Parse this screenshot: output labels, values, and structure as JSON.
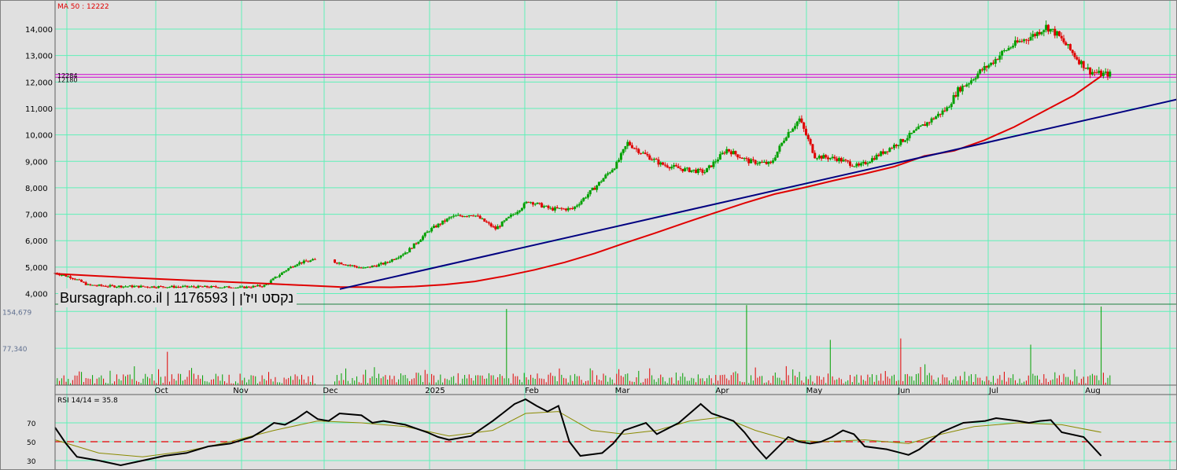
{
  "chart_data": [
    {
      "type": "candlestick",
      "title": "",
      "ma_label": "MA 50 : 12222",
      "level_labels": [
        "12284",
        "12180"
      ],
      "yticks": [
        "14,000",
        "13,000",
        "12,000",
        "11,000",
        "10,000",
        "9,000",
        "8,000",
        "7,000",
        "6,000",
        "5,000",
        "4,000"
      ],
      "ytick_values": [
        14000,
        13000,
        12000,
        11000,
        10000,
        9000,
        8000,
        7000,
        6000,
        5000,
        4000
      ],
      "ylim": [
        3600,
        15100
      ],
      "horizontal_levels": [
        12284,
        12180
      ],
      "ma_points": [
        [
          0,
          4750
        ],
        [
          25,
          4600
        ],
        [
          45,
          4500
        ],
        [
          70,
          4380
        ],
        [
          95,
          4250
        ],
        [
          112,
          4240
        ],
        [
          120,
          4270
        ],
        [
          130,
          4340
        ],
        [
          140,
          4460
        ],
        [
          150,
          4660
        ],
        [
          160,
          4900
        ],
        [
          170,
          5180
        ],
        [
          180,
          5520
        ],
        [
          190,
          5910
        ],
        [
          200,
          6280
        ],
        [
          210,
          6670
        ],
        [
          220,
          7050
        ],
        [
          230,
          7420
        ],
        [
          240,
          7760
        ],
        [
          250,
          8010
        ],
        [
          260,
          8280
        ],
        [
          270,
          8530
        ],
        [
          280,
          8800
        ],
        [
          290,
          9200
        ],
        [
          300,
          9400
        ],
        [
          310,
          9800
        ],
        [
          320,
          10300
        ],
        [
          330,
          10900
        ],
        [
          340,
          11500
        ],
        [
          349,
          12222
        ]
      ],
      "trendline": [
        [
          95,
          4170
        ],
        [
          370,
          11230
        ]
      ],
      "price_path": [
        [
          0,
          4780
        ],
        [
          8,
          4600
        ],
        [
          15,
          4320
        ],
        [
          25,
          4280
        ],
        [
          45,
          4260
        ],
        [
          70,
          4250
        ],
        [
          85,
          4230
        ],
        [
          95,
          4300
        ],
        [
          100,
          4600
        ],
        [
          105,
          4900
        ],
        [
          110,
          5150
        ],
        [
          120,
          5300
        ],
        [
          130,
          5150
        ],
        [
          140,
          4950
        ],
        [
          150,
          5150
        ],
        [
          160,
          5600
        ],
        [
          170,
          6400
        ],
        [
          180,
          6900
        ],
        [
          190,
          7000
        ],
        [
          200,
          6450
        ],
        [
          208,
          7000
        ],
        [
          215,
          7500
        ],
        [
          225,
          7200
        ],
        [
          235,
          7200
        ],
        [
          245,
          8000
        ],
        [
          255,
          8900
        ],
        [
          260,
          9700
        ],
        [
          265,
          9400
        ],
        [
          275,
          8900
        ],
        [
          285,
          8700
        ],
        [
          295,
          8600
        ],
        [
          305,
          9450
        ],
        [
          315,
          9000
        ],
        [
          325,
          8900
        ],
        [
          332,
          10000
        ],
        [
          338,
          10600
        ],
        [
          345,
          9200
        ],
        [
          355,
          9100
        ],
        [
          365,
          8800
        ],
        [
          375,
          9300
        ],
        [
          385,
          9800
        ],
        [
          395,
          10400
        ],
        [
          405,
          11000
        ],
        [
          410,
          11700
        ],
        [
          415,
          12000
        ],
        [
          420,
          12400
        ],
        [
          425,
          12700
        ],
        [
          430,
          13100
        ],
        [
          435,
          13400
        ],
        [
          440,
          13600
        ],
        [
          445,
          13800
        ],
        [
          450,
          14100
        ],
        [
          455,
          13800
        ],
        [
          460,
          13300
        ],
        [
          465,
          12800
        ],
        [
          470,
          12400
        ],
        [
          475,
          12300
        ]
      ]
    },
    {
      "type": "bar",
      "ytick_labels": [
        "154,679",
        "77,340"
      ],
      "ytick_values": [
        154679,
        77340
      ],
      "ylim": [
        0,
        170000
      ],
      "peaks": [
        [
          48,
          70000
        ],
        [
          194,
          160000
        ],
        [
          297,
          168000
        ],
        [
          333,
          95000
        ],
        [
          364,
          98000
        ],
        [
          420,
          85000
        ],
        [
          450,
          165000
        ]
      ],
      "months": [
        "Oct",
        "Nov",
        "Dec",
        "2025",
        "Feb",
        "Mar",
        "Apr",
        "May",
        "Jun",
        "Jul",
        "Aug"
      ]
    },
    {
      "type": "line",
      "label": "RSI 14/14 = 35.8",
      "yticks": [
        "70",
        "50",
        "30"
      ],
      "ytick_values": [
        70,
        50,
        30
      ],
      "ylim": [
        20,
        100
      ],
      "reference_level": 50,
      "rsi": [
        [
          0,
          65
        ],
        [
          5,
          48
        ],
        [
          10,
          34
        ],
        [
          20,
          30
        ],
        [
          30,
          25
        ],
        [
          40,
          30
        ],
        [
          50,
          35
        ],
        [
          60,
          38
        ],
        [
          70,
          45
        ],
        [
          80,
          48
        ],
        [
          90,
          55
        ],
        [
          95,
          62
        ],
        [
          100,
          70
        ],
        [
          105,
          68
        ],
        [
          110,
          74
        ],
        [
          115,
          82
        ],
        [
          120,
          74
        ],
        [
          125,
          72
        ],
        [
          130,
          80
        ],
        [
          140,
          78
        ],
        [
          145,
          70
        ],
        [
          150,
          72
        ],
        [
          155,
          70
        ],
        [
          160,
          68
        ],
        [
          170,
          60
        ],
        [
          175,
          55
        ],
        [
          180,
          52
        ],
        [
          190,
          56
        ],
        [
          200,
          72
        ],
        [
          210,
          90
        ],
        [
          215,
          95
        ],
        [
          220,
          88
        ],
        [
          225,
          82
        ],
        [
          230,
          88
        ],
        [
          235,
          50
        ],
        [
          240,
          35
        ],
        [
          250,
          38
        ],
        [
          255,
          48
        ],
        [
          260,
          62
        ],
        [
          270,
          70
        ],
        [
          275,
          58
        ],
        [
          285,
          70
        ],
        [
          295,
          90
        ],
        [
          300,
          80
        ],
        [
          310,
          72
        ],
        [
          315,
          60
        ],
        [
          320,
          45
        ],
        [
          325,
          32
        ],
        [
          335,
          55
        ],
        [
          340,
          50
        ],
        [
          345,
          48
        ],
        [
          350,
          50
        ],
        [
          355,
          55
        ],
        [
          360,
          62
        ],
        [
          365,
          58
        ],
        [
          370,
          45
        ],
        [
          380,
          42
        ],
        [
          390,
          36
        ],
        [
          395,
          42
        ],
        [
          405,
          60
        ],
        [
          415,
          70
        ],
        [
          425,
          72
        ],
        [
          430,
          75
        ],
        [
          440,
          72
        ],
        [
          445,
          70
        ],
        [
          450,
          72
        ],
        [
          455,
          73
        ],
        [
          460,
          60
        ],
        [
          470,
          55
        ],
        [
          478,
          35
        ]
      ],
      "rsi_ma": [
        [
          0,
          52
        ],
        [
          10,
          45
        ],
        [
          20,
          38
        ],
        [
          40,
          34
        ],
        [
          60,
          40
        ],
        [
          80,
          50
        ],
        [
          100,
          62
        ],
        [
          120,
          72
        ],
        [
          140,
          70
        ],
        [
          160,
          66
        ],
        [
          180,
          56
        ],
        [
          200,
          62
        ],
        [
          215,
          80
        ],
        [
          230,
          82
        ],
        [
          245,
          62
        ],
        [
          260,
          58
        ],
        [
          275,
          62
        ],
        [
          290,
          72
        ],
        [
          305,
          76
        ],
        [
          320,
          62
        ],
        [
          335,
          52
        ],
        [
          350,
          50
        ],
        [
          370,
          52
        ],
        [
          390,
          48
        ],
        [
          405,
          58
        ],
        [
          420,
          66
        ],
        [
          440,
          70
        ],
        [
          460,
          68
        ],
        [
          478,
          60
        ]
      ]
    }
  ],
  "watermark": "Bursagraph.co.il | 1176593 | נקסט ויז'ן",
  "colors": {
    "background": "#e0e0e0",
    "grid": "#5ff0b8",
    "ma": "#e00000",
    "trend": "#000080",
    "candle_up": "#00a000",
    "candle_down": "#e00000",
    "level": "#d000d0",
    "rsi": "#000000",
    "rsi_ma": "#8a8a00",
    "ref": "#e00000"
  }
}
